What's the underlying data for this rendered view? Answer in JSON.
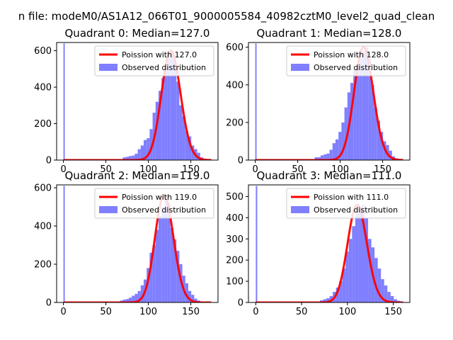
{
  "suptitle": "n file: modeM0/AS1A12_066T01_9000005584_40982cztM0_level2_quad_clean",
  "colors": {
    "fit": "#ff0000",
    "hist": "#7f7fff",
    "fit_alpha_band": "#ff9090"
  },
  "chart_data": [
    {
      "type": "histogram",
      "title": "Quadrant 0: Median=127.0",
      "median": 127.0,
      "xlim": [
        -8,
        182
      ],
      "ylim": [
        0,
        645
      ],
      "xticks": [
        0,
        50,
        100,
        150
      ],
      "yticks": [
        0,
        200,
        400,
        600
      ],
      "legend": {
        "placement": "top-right",
        "entries": [
          "Poission with 127.0",
          "Observed distribution"
        ]
      },
      "bin_width": 3.5,
      "bins": [
        [
          0,
          640
        ],
        [
          70,
          15
        ],
        [
          73.5,
          18
        ],
        [
          77,
          22
        ],
        [
          80.5,
          25
        ],
        [
          84,
          35
        ],
        [
          87.5,
          60
        ],
        [
          91,
          80
        ],
        [
          94.5,
          110
        ],
        [
          98,
          120
        ],
        [
          101.5,
          170
        ],
        [
          105,
          260
        ],
        [
          108.5,
          320
        ],
        [
          112,
          380
        ],
        [
          115.5,
          450
        ],
        [
          119,
          510
        ],
        [
          122.5,
          560
        ],
        [
          126,
          600
        ],
        [
          129.5,
          550
        ],
        [
          133,
          430
        ],
        [
          136.5,
          300
        ],
        [
          140,
          240
        ],
        [
          143.5,
          160
        ],
        [
          147,
          130
        ],
        [
          150.5,
          80
        ],
        [
          154,
          60
        ],
        [
          157.5,
          40
        ],
        [
          161,
          15
        ],
        [
          164.5,
          8
        ]
      ]
    },
    {
      "type": "histogram",
      "title": "Quadrant 1: Median=128.0",
      "median": 128.0,
      "xlim": [
        -8,
        182
      ],
      "ylim": [
        0,
        625
      ],
      "xticks": [
        0,
        50,
        100,
        150
      ],
      "yticks": [
        0,
        200,
        400,
        600
      ],
      "legend": {
        "placement": "top-right",
        "entries": [
          "Poission with 128.0",
          "Observed distribution"
        ]
      },
      "bin_width": 3.5,
      "bins": [
        [
          0,
          620
        ],
        [
          70,
          15
        ],
        [
          73.5,
          15
        ],
        [
          77,
          25
        ],
        [
          80.5,
          30
        ],
        [
          84,
          35
        ],
        [
          87.5,
          55
        ],
        [
          91,
          90
        ],
        [
          94.5,
          110
        ],
        [
          98,
          150
        ],
        [
          101.5,
          200
        ],
        [
          105,
          280
        ],
        [
          108.5,
          360
        ],
        [
          112,
          410
        ],
        [
          115.5,
          480
        ],
        [
          119,
          500
        ],
        [
          122.5,
          540
        ],
        [
          126,
          580
        ],
        [
          129.5,
          600
        ],
        [
          133,
          540
        ],
        [
          136.5,
          400
        ],
        [
          140,
          280
        ],
        [
          143.5,
          210
        ],
        [
          147,
          150
        ],
        [
          150.5,
          100
        ],
        [
          154,
          80
        ],
        [
          157.5,
          50
        ],
        [
          161,
          20
        ],
        [
          164.5,
          10
        ]
      ]
    },
    {
      "type": "histogram",
      "title": "Quadrant 2: Median=119.0",
      "median": 119.0,
      "xlim": [
        -8,
        182
      ],
      "ylim": [
        0,
        615
      ],
      "xticks": [
        0,
        50,
        100,
        150
      ],
      "yticks": [
        0,
        200,
        400,
        600
      ],
      "legend": {
        "placement": "top-right",
        "entries": [
          "Poission with 119.0",
          "Observed distribution"
        ]
      },
      "bin_width": 3.5,
      "bins": [
        [
          0,
          610
        ],
        [
          66.5,
          10
        ],
        [
          70,
          15
        ],
        [
          73.5,
          18
        ],
        [
          77,
          25
        ],
        [
          80.5,
          35
        ],
        [
          84,
          45
        ],
        [
          87.5,
          60
        ],
        [
          91,
          90
        ],
        [
          94.5,
          120
        ],
        [
          98,
          180
        ],
        [
          101.5,
          260
        ],
        [
          105,
          300
        ],
        [
          108.5,
          380
        ],
        [
          112,
          450
        ],
        [
          115.5,
          500
        ],
        [
          119,
          560
        ],
        [
          122.5,
          520
        ],
        [
          126,
          390
        ],
        [
          129.5,
          330
        ],
        [
          133,
          270
        ],
        [
          136.5,
          200
        ],
        [
          140,
          140
        ],
        [
          143.5,
          100
        ],
        [
          147,
          60
        ],
        [
          150.5,
          40
        ],
        [
          154,
          20
        ],
        [
          157.5,
          10
        ]
      ]
    },
    {
      "type": "histogram",
      "title": "Quadrant 3: Median=111.0",
      "median": 111.0,
      "xlim": [
        -8,
        168
      ],
      "ylim": [
        0,
        555
      ],
      "xticks": [
        0,
        50,
        100,
        150
      ],
      "yticks": [
        0,
        100,
        200,
        300,
        400,
        500
      ],
      "legend": {
        "placement": "top-right",
        "entries": [
          "Poission with 111.0",
          "Observed distribution"
        ]
      },
      "bin_width": 3.5,
      "bins": [
        [
          0,
          550
        ],
        [
          70,
          10
        ],
        [
          73.5,
          15
        ],
        [
          77,
          20
        ],
        [
          80.5,
          30
        ],
        [
          84,
          50
        ],
        [
          87.5,
          70
        ],
        [
          91,
          100
        ],
        [
          94.5,
          160
        ],
        [
          98,
          240
        ],
        [
          101.5,
          300
        ],
        [
          105,
          360
        ],
        [
          108.5,
          420
        ],
        [
          112,
          450
        ],
        [
          115.5,
          460
        ],
        [
          119,
          400
        ],
        [
          122.5,
          300
        ],
        [
          126,
          260
        ],
        [
          129.5,
          210
        ],
        [
          133,
          160
        ],
        [
          136.5,
          110
        ],
        [
          140,
          80
        ],
        [
          143.5,
          50
        ],
        [
          147,
          30
        ],
        [
          150.5,
          15
        ],
        [
          154,
          8
        ],
        [
          157.5,
          5
        ]
      ]
    }
  ]
}
